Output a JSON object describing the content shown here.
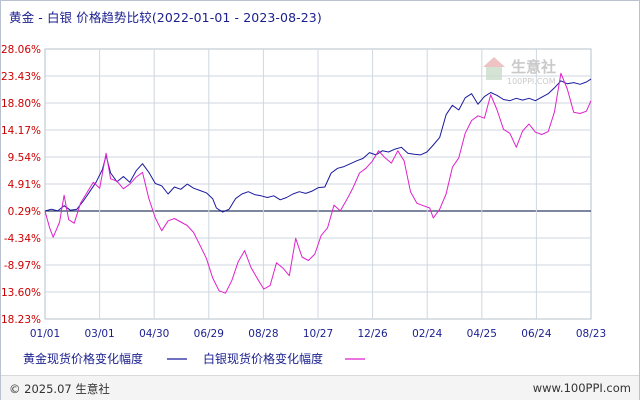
{
  "title_text": "黄金 - 白银 价格趋势比较(2022-01-01 - 2023-08-23)",
  "footer": {
    "copyright": "© 2025.07 生意社",
    "url": "www.100PPI.com"
  },
  "watermark": {
    "name": "生意社",
    "sub": "100PPI.COM"
  },
  "colors": {
    "gold_line": "#1a1a9c",
    "silver_line": "#dd22cc",
    "zero_line": "#2e3f62",
    "grid": "#cfd7df",
    "label": "#cc0000",
    "axis_text": "#1a1f8f"
  },
  "chart_data": {
    "type": "line",
    "title": "黄金 - 白银 价格趋势比较(2022-01-01 - 2023-08-23)",
    "x_ticks": [
      "01/01",
      "03/01",
      "04/30",
      "06/29",
      "08/28",
      "10/27",
      "12/26",
      "02/24",
      "04/25",
      "06/24",
      "08/23"
    ],
    "x_range": [
      "2022-01-01",
      "2023-08-23"
    ],
    "y_ticks": [
      "28.06%",
      "23.43%",
      "18.80%",
      "14.17%",
      "9.54%",
      "4.91%",
      "0.29%",
      "-4.34%",
      "-8.97%",
      "-13.60%",
      "-18.23%"
    ],
    "ylim": [
      -18.23,
      28.06
    ],
    "grid": true,
    "series": [
      {
        "name": "黄金现货价格变化幅度",
        "points": [
          [
            "2022-01-01",
            0.29
          ],
          [
            "2022-01-08",
            0.6
          ],
          [
            "2022-01-15",
            0.3
          ],
          [
            "2022-01-22",
            1.2
          ],
          [
            "2022-01-29",
            0.4
          ],
          [
            "2022-02-05",
            0.6
          ],
          [
            "2022-02-12",
            2.0
          ],
          [
            "2022-02-19",
            3.6
          ],
          [
            "2022-02-26",
            5.2
          ],
          [
            "2022-03-05",
            7.4
          ],
          [
            "2022-03-09",
            9.8
          ],
          [
            "2022-03-14",
            6.8
          ],
          [
            "2022-03-21",
            5.3
          ],
          [
            "2022-03-28",
            6.2
          ],
          [
            "2022-04-04",
            5.2
          ],
          [
            "2022-04-11",
            7.2
          ],
          [
            "2022-04-18",
            8.4
          ],
          [
            "2022-04-25",
            6.9
          ],
          [
            "2022-05-02",
            5.0
          ],
          [
            "2022-05-09",
            4.6
          ],
          [
            "2022-05-16",
            3.2
          ],
          [
            "2022-05-23",
            4.4
          ],
          [
            "2022-05-30",
            4.0
          ],
          [
            "2022-06-06",
            4.9
          ],
          [
            "2022-06-13",
            4.2
          ],
          [
            "2022-06-20",
            3.8
          ],
          [
            "2022-06-27",
            3.4
          ],
          [
            "2022-07-04",
            2.4
          ],
          [
            "2022-07-08",
            0.8
          ],
          [
            "2022-07-15",
            0.1
          ],
          [
            "2022-07-22",
            0.6
          ],
          [
            "2022-07-29",
            2.4
          ],
          [
            "2022-08-05",
            3.2
          ],
          [
            "2022-08-12",
            3.6
          ],
          [
            "2022-08-19",
            3.1
          ],
          [
            "2022-08-26",
            2.9
          ],
          [
            "2022-09-02",
            2.6
          ],
          [
            "2022-09-09",
            2.9
          ],
          [
            "2022-09-16",
            2.2
          ],
          [
            "2022-09-23",
            2.6
          ],
          [
            "2022-09-30",
            3.2
          ],
          [
            "2022-10-07",
            3.6
          ],
          [
            "2022-10-14",
            3.3
          ],
          [
            "2022-10-21",
            3.7
          ],
          [
            "2022-10-28",
            4.3
          ],
          [
            "2022-11-04",
            4.4
          ],
          [
            "2022-11-11",
            6.8
          ],
          [
            "2022-11-18",
            7.6
          ],
          [
            "2022-11-25",
            7.9
          ],
          [
            "2022-12-02",
            8.4
          ],
          [
            "2022-12-09",
            8.9
          ],
          [
            "2022-12-16",
            9.3
          ],
          [
            "2022-12-23",
            10.3
          ],
          [
            "2022-12-30",
            9.9
          ],
          [
            "2023-01-06",
            10.6
          ],
          [
            "2023-01-13",
            10.4
          ],
          [
            "2023-01-20",
            10.9
          ],
          [
            "2023-01-27",
            11.2
          ],
          [
            "2023-02-03",
            10.2
          ],
          [
            "2023-02-10",
            10.0
          ],
          [
            "2023-02-17",
            9.9
          ],
          [
            "2023-02-24",
            10.4
          ],
          [
            "2023-03-03",
            11.6
          ],
          [
            "2023-03-10",
            12.9
          ],
          [
            "2023-03-17",
            16.8
          ],
          [
            "2023-03-24",
            18.4
          ],
          [
            "2023-03-31",
            17.6
          ],
          [
            "2023-04-07",
            19.7
          ],
          [
            "2023-04-14",
            20.4
          ],
          [
            "2023-04-21",
            18.6
          ],
          [
            "2023-04-28",
            19.9
          ],
          [
            "2023-05-05",
            20.6
          ],
          [
            "2023-05-12",
            20.1
          ],
          [
            "2023-05-19",
            19.4
          ],
          [
            "2023-05-26",
            19.2
          ],
          [
            "2023-06-02",
            19.6
          ],
          [
            "2023-06-09",
            19.3
          ],
          [
            "2023-06-16",
            19.6
          ],
          [
            "2023-06-23",
            19.2
          ],
          [
            "2023-06-30",
            19.8
          ],
          [
            "2023-07-07",
            20.4
          ],
          [
            "2023-07-14",
            21.4
          ],
          [
            "2023-07-21",
            22.6
          ],
          [
            "2023-07-28",
            22.1
          ],
          [
            "2023-08-04",
            22.3
          ],
          [
            "2023-08-11",
            22.0
          ],
          [
            "2023-08-18",
            22.4
          ],
          [
            "2023-08-23",
            22.9
          ]
        ]
      },
      {
        "name": "白银现货价格变化幅度",
        "points": [
          [
            "2022-01-01",
            0.29
          ],
          [
            "2022-01-06",
            -2.6
          ],
          [
            "2022-01-10",
            -4.2
          ],
          [
            "2022-01-17",
            -1.6
          ],
          [
            "2022-01-22",
            3.0
          ],
          [
            "2022-01-27",
            -1.2
          ],
          [
            "2022-02-02",
            -1.8
          ],
          [
            "2022-02-09",
            1.6
          ],
          [
            "2022-02-16",
            3.4
          ],
          [
            "2022-02-23",
            5.2
          ],
          [
            "2022-03-02",
            4.2
          ],
          [
            "2022-03-09",
            10.2
          ],
          [
            "2022-03-14",
            5.8
          ],
          [
            "2022-03-21",
            5.4
          ],
          [
            "2022-03-28",
            4.1
          ],
          [
            "2022-04-04",
            4.9
          ],
          [
            "2022-04-11",
            6.1
          ],
          [
            "2022-04-18",
            6.9
          ],
          [
            "2022-04-25",
            2.4
          ],
          [
            "2022-05-02",
            -0.9
          ],
          [
            "2022-05-09",
            -3.1
          ],
          [
            "2022-05-16",
            -1.4
          ],
          [
            "2022-05-23",
            -1.0
          ],
          [
            "2022-05-30",
            -1.6
          ],
          [
            "2022-06-06",
            -2.2
          ],
          [
            "2022-06-13",
            -3.4
          ],
          [
            "2022-06-20",
            -5.6
          ],
          [
            "2022-06-27",
            -7.8
          ],
          [
            "2022-07-04",
            -11.2
          ],
          [
            "2022-07-11",
            -13.4
          ],
          [
            "2022-07-18",
            -13.8
          ],
          [
            "2022-07-25",
            -11.6
          ],
          [
            "2022-08-01",
            -8.4
          ],
          [
            "2022-08-08",
            -6.5
          ],
          [
            "2022-08-15",
            -9.4
          ],
          [
            "2022-08-22",
            -11.3
          ],
          [
            "2022-08-29",
            -13.1
          ],
          [
            "2022-09-05",
            -12.5
          ],
          [
            "2022-09-12",
            -8.6
          ],
          [
            "2022-09-19",
            -9.5
          ],
          [
            "2022-09-26",
            -10.8
          ],
          [
            "2022-10-03",
            -4.4
          ],
          [
            "2022-10-10",
            -7.6
          ],
          [
            "2022-10-17",
            -8.2
          ],
          [
            "2022-10-24",
            -7.1
          ],
          [
            "2022-10-31",
            -3.9
          ],
          [
            "2022-11-07",
            -2.6
          ],
          [
            "2022-11-14",
            1.3
          ],
          [
            "2022-11-21",
            0.3
          ],
          [
            "2022-11-28",
            2.2
          ],
          [
            "2022-12-05",
            4.3
          ],
          [
            "2022-12-12",
            6.8
          ],
          [
            "2022-12-19",
            7.6
          ],
          [
            "2022-12-26",
            8.8
          ],
          [
            "2023-01-02",
            10.6
          ],
          [
            "2023-01-09",
            9.4
          ],
          [
            "2023-01-16",
            8.5
          ],
          [
            "2023-01-23",
            10.6
          ],
          [
            "2023-01-30",
            8.9
          ],
          [
            "2023-02-06",
            3.6
          ],
          [
            "2023-02-13",
            1.6
          ],
          [
            "2023-02-20",
            1.2
          ],
          [
            "2023-02-27",
            0.8
          ],
          [
            "2023-03-03",
            -0.9
          ],
          [
            "2023-03-10",
            0.6
          ],
          [
            "2023-03-17",
            3.2
          ],
          [
            "2023-03-24",
            7.8
          ],
          [
            "2023-03-31",
            9.4
          ],
          [
            "2023-04-07",
            13.6
          ],
          [
            "2023-04-14",
            15.8
          ],
          [
            "2023-04-21",
            16.6
          ],
          [
            "2023-04-28",
            16.2
          ],
          [
            "2023-05-05",
            20.2
          ],
          [
            "2023-05-12",
            17.6
          ],
          [
            "2023-05-19",
            14.3
          ],
          [
            "2023-05-26",
            13.6
          ],
          [
            "2023-06-02",
            11.2
          ],
          [
            "2023-06-09",
            14.0
          ],
          [
            "2023-06-16",
            15.2
          ],
          [
            "2023-06-23",
            13.8
          ],
          [
            "2023-06-30",
            13.4
          ],
          [
            "2023-07-07",
            13.9
          ],
          [
            "2023-07-14",
            17.3
          ],
          [
            "2023-07-21",
            23.9
          ],
          [
            "2023-07-28",
            21.2
          ],
          [
            "2023-08-04",
            17.2
          ],
          [
            "2023-08-11",
            17.0
          ],
          [
            "2023-08-18",
            17.4
          ],
          [
            "2023-08-23",
            19.2
          ]
        ]
      }
    ],
    "legend": [
      {
        "label": "黄金现货价格变化幅度",
        "color": "#1a1a9c"
      },
      {
        "label": "白银现货价格变化幅度",
        "color": "#dd22cc"
      }
    ]
  }
}
